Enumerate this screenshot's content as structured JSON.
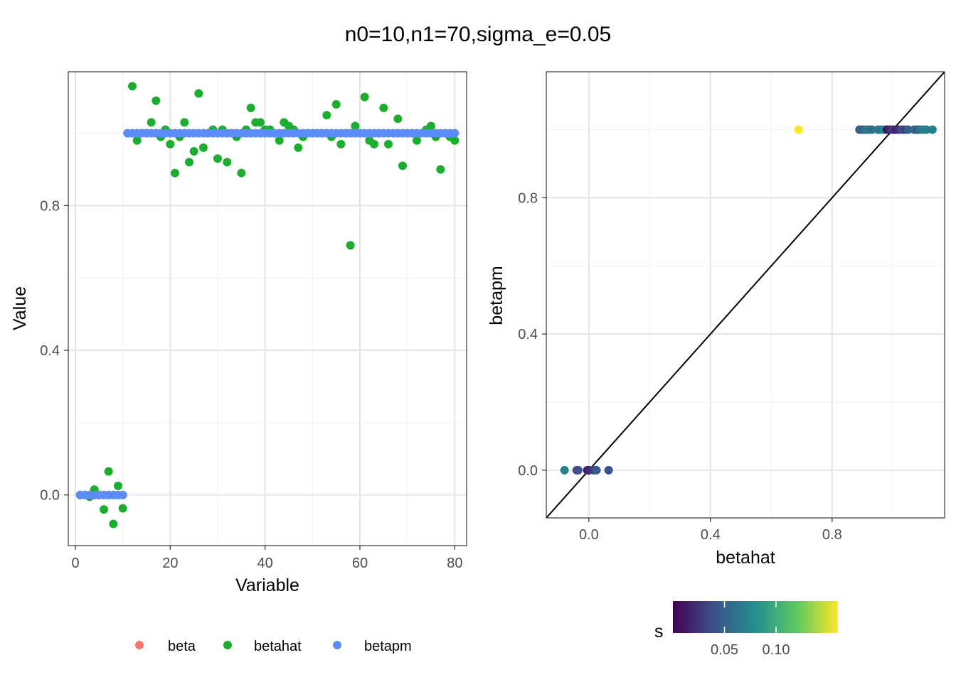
{
  "title": "n0=10,n1=70,sigma_e=0.05",
  "colors": {
    "beta": "#F8766D",
    "betahat": "#1BAE2E",
    "betapm": "#5B8CF7",
    "panel_border": "#333333",
    "grid_major": "#E5E5E5",
    "grid_minor": "#F2F2F2",
    "identity_line": "#000000"
  },
  "chart_data": [
    {
      "type": "scatter",
      "name": "left-panel",
      "xlabel": "Variable",
      "ylabel": "Value",
      "xlim": [
        -1.5,
        82.5
      ],
      "ylim": [
        -0.14,
        1.17
      ],
      "xticks": [
        0,
        20,
        40,
        60,
        80
      ],
      "xtick_labels": [
        "0",
        "20",
        "40",
        "60",
        "80"
      ],
      "yticks": [
        0.0,
        0.4,
        0.8
      ],
      "ytick_labels": [
        "0.0",
        "0.4",
        "0.8"
      ],
      "grid": true,
      "series": [
        {
          "name": "beta",
          "color_key": "beta",
          "values": [
            0,
            0,
            0,
            0,
            0,
            0,
            0,
            0,
            0,
            0,
            1,
            1,
            1,
            1,
            1,
            1,
            1,
            1,
            1,
            1,
            1,
            1,
            1,
            1,
            1,
            1,
            1,
            1,
            1,
            1,
            1,
            1,
            1,
            1,
            1,
            1,
            1,
            1,
            1,
            1,
            1,
            1,
            1,
            1,
            1,
            1,
            1,
            1,
            1,
            1,
            1,
            1,
            1,
            1,
            1,
            1,
            1,
            1,
            1,
            1,
            1,
            1,
            1,
            1,
            1,
            1,
            1,
            1,
            1,
            1,
            1,
            1,
            1,
            1,
            1,
            1,
            1,
            1,
            1,
            1
          ]
        },
        {
          "name": "betahat",
          "color_key": "betahat",
          "values": [
            0.0,
            0.0,
            -0.005,
            0.015,
            0.0,
            -0.04,
            0.065,
            -0.08,
            0.025,
            -0.037,
            1.0,
            1.13,
            0.98,
            1.0,
            1.0,
            1.03,
            1.09,
            0.99,
            1.01,
            0.97,
            0.89,
            0.99,
            1.03,
            0.92,
            0.95,
            1.11,
            0.96,
            1.0,
            1.01,
            0.93,
            1.01,
            0.92,
            1.0,
            0.99,
            0.89,
            1.01,
            1.07,
            1.03,
            1.03,
            1.01,
            1.01,
            1.0,
            0.98,
            1.03,
            1.02,
            1.01,
            0.96,
            0.99,
            1.0,
            1.0,
            1.0,
            1.0,
            1.05,
            0.99,
            1.08,
            0.97,
            1.0,
            0.69,
            1.02,
            1.0,
            1.1,
            0.98,
            0.97,
            1.0,
            1.07,
            0.97,
            1.0,
            1.04,
            0.91,
            1.0,
            1.0,
            0.98,
            1.0,
            1.01,
            1.02,
            0.99,
            0.9,
            1.0,
            0.99,
            0.98
          ]
        },
        {
          "name": "betapm",
          "color_key": "betapm",
          "values": [
            0,
            0,
            0,
            0,
            0,
            0,
            0,
            0,
            0,
            0,
            1,
            1,
            1,
            1,
            1,
            1,
            1,
            1,
            1,
            1,
            1,
            1,
            1,
            1,
            1,
            1,
            1,
            1,
            1,
            1,
            1,
            1,
            1,
            1,
            1,
            1,
            1,
            1,
            1,
            1,
            1,
            1,
            1,
            1,
            1,
            1,
            1,
            1,
            1,
            1,
            1,
            1,
            1,
            1,
            1,
            1,
            1,
            1,
            1,
            1,
            1,
            1,
            1,
            1,
            1,
            1,
            1,
            1,
            1,
            1,
            1,
            1,
            1,
            1,
            1,
            1,
            1,
            1,
            1,
            1
          ]
        }
      ],
      "legend": {
        "placement": "bottom",
        "entries": [
          "beta",
          "betahat",
          "betapm"
        ]
      }
    },
    {
      "type": "scatter",
      "name": "right-panel",
      "xlabel": "betahat",
      "ylabel": "betapm",
      "xlim": [
        -0.14,
        1.17
      ],
      "ylim": [
        -0.14,
        1.17
      ],
      "xticks": [
        0.0,
        0.4,
        0.8
      ],
      "xtick_labels": [
        "0.0",
        "0.4",
        "0.8"
      ],
      "yticks": [
        0.0,
        0.4,
        0.8
      ],
      "ytick_labels": [
        "0.0",
        "0.4",
        "0.8"
      ],
      "grid": true,
      "reference_line": "y = x",
      "points": [
        {
          "x": -0.08,
          "y": 0,
          "s": 0.07
        },
        {
          "x": -0.04,
          "y": 0,
          "s": 0.035
        },
        {
          "x": -0.035,
          "y": 0,
          "s": 0.04
        },
        {
          "x": -0.005,
          "y": 0,
          "s": 0.01
        },
        {
          "x": 0.0,
          "y": 0,
          "s": 0.005
        },
        {
          "x": 0.0,
          "y": 0,
          "s": 0.02
        },
        {
          "x": 0.015,
          "y": 0,
          "s": 0.03
        },
        {
          "x": 0.025,
          "y": 0,
          "s": 0.045
        },
        {
          "x": 0.065,
          "y": 0,
          "s": 0.04
        },
        {
          "x": 0.69,
          "y": 1,
          "s": 0.16
        },
        {
          "x": 0.89,
          "y": 1,
          "s": 0.045
        },
        {
          "x": 0.9,
          "y": 1,
          "s": 0.05
        },
        {
          "x": 0.91,
          "y": 1,
          "s": 0.06
        },
        {
          "x": 0.92,
          "y": 1,
          "s": 0.065
        },
        {
          "x": 0.93,
          "y": 1,
          "s": 0.055
        },
        {
          "x": 0.95,
          "y": 1,
          "s": 0.07
        },
        {
          "x": 0.96,
          "y": 1,
          "s": 0.06
        },
        {
          "x": 0.97,
          "y": 1,
          "s": 0.08
        },
        {
          "x": 0.98,
          "y": 1,
          "s": 0.01
        },
        {
          "x": 0.99,
          "y": 1,
          "s": 0.02
        },
        {
          "x": 1.0,
          "y": 1,
          "s": 0.005
        },
        {
          "x": 1.0,
          "y": 1,
          "s": 0.03
        },
        {
          "x": 1.01,
          "y": 1,
          "s": 0.015
        },
        {
          "x": 1.02,
          "y": 1,
          "s": 0.025
        },
        {
          "x": 1.03,
          "y": 1,
          "s": 0.04
        },
        {
          "x": 1.04,
          "y": 1,
          "s": 0.03
        },
        {
          "x": 1.05,
          "y": 1,
          "s": 0.05
        },
        {
          "x": 1.07,
          "y": 1,
          "s": 0.055
        },
        {
          "x": 1.08,
          "y": 1,
          "s": 0.045
        },
        {
          "x": 1.09,
          "y": 1,
          "s": 0.06
        },
        {
          "x": 1.1,
          "y": 1,
          "s": 0.07
        },
        {
          "x": 1.11,
          "y": 1,
          "s": 0.065
        },
        {
          "x": 1.13,
          "y": 1,
          "s": 0.07
        }
      ],
      "colorbar": {
        "title": "s",
        "range": [
          0.0,
          0.16
        ],
        "ticks": [
          0.05,
          0.1
        ],
        "tick_labels": [
          "0.05",
          "0.10"
        ],
        "palette": [
          "#440154",
          "#3B528B",
          "#21908C",
          "#5DC863",
          "#FDE725"
        ]
      }
    }
  ]
}
